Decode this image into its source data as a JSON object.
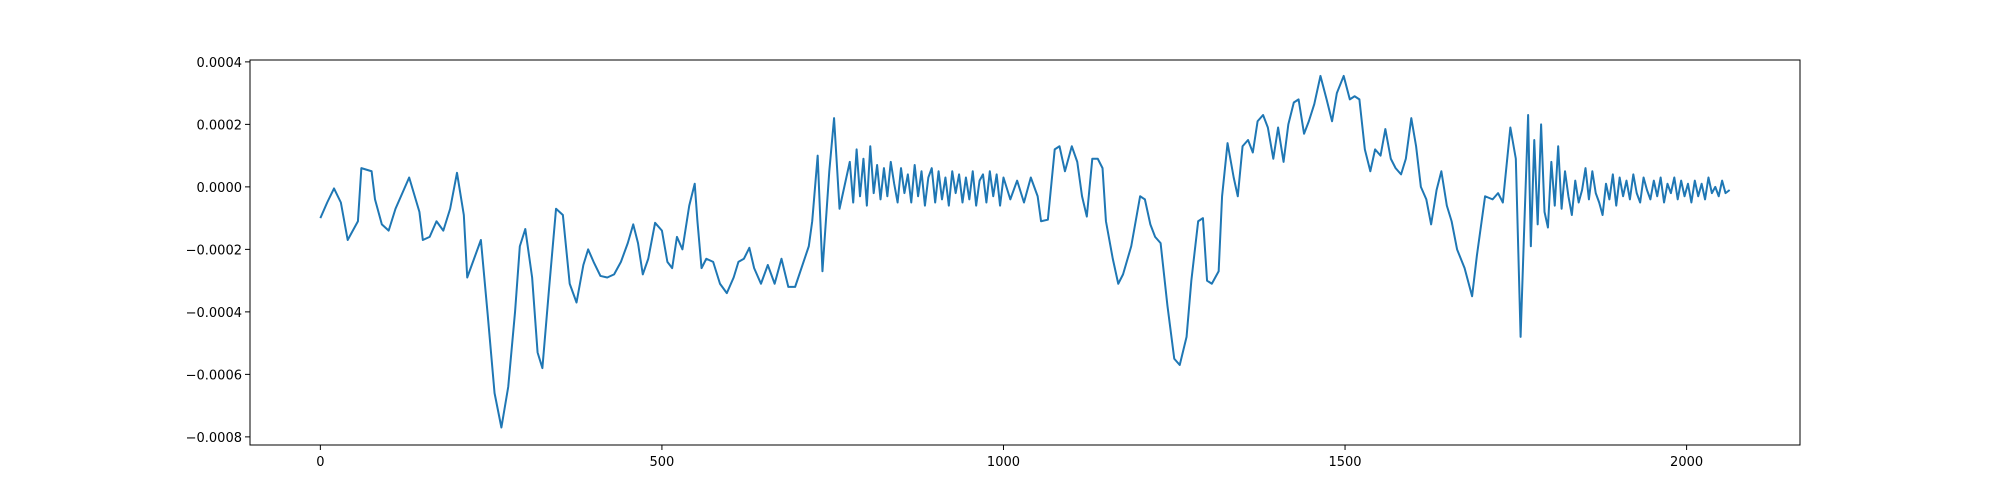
{
  "chart_data": {
    "type": "line",
    "color": "#1f77b4",
    "grid": false,
    "xlim": [
      -103,
      2166
    ],
    "ylim": [
      -0.000826,
      0.000406
    ],
    "xticks": [
      0,
      500,
      1000,
      1500,
      2000
    ],
    "yticks": [
      {
        "value": -0.0008,
        "label": "−0.0008"
      },
      {
        "value": -0.0006,
        "label": "−0.0006"
      },
      {
        "value": -0.0004,
        "label": "−0.0004"
      },
      {
        "value": -0.0002,
        "label": "−0.0002"
      },
      {
        "value": 0,
        "label": "0.0000"
      },
      {
        "value": 0.0002,
        "label": "0.0002"
      },
      {
        "value": 0.0004,
        "label": "0.0004"
      }
    ],
    "x": [
      0,
      10,
      20,
      30,
      40,
      55,
      60,
      75,
      80,
      90,
      100,
      110,
      120,
      130,
      145,
      150,
      160,
      170,
      180,
      190,
      200,
      210,
      215,
      225,
      235,
      245,
      255,
      265,
      275,
      285,
      292,
      300,
      310,
      318,
      325,
      335,
      345,
      355,
      365,
      375,
      385,
      392,
      400,
      410,
      420,
      430,
      440,
      450,
      458,
      465,
      472,
      480,
      490,
      500,
      508,
      515,
      522,
      530,
      540,
      548,
      552,
      558,
      565,
      575,
      585,
      595,
      605,
      612,
      620,
      628,
      635,
      645,
      655,
      665,
      675,
      685,
      695,
      715,
      720,
      728,
      735,
      745,
      752,
      760,
      770,
      775,
      780,
      785,
      790,
      795,
      800,
      805,
      810,
      815,
      820,
      825,
      830,
      835,
      840,
      845,
      850,
      855,
      860,
      865,
      870,
      875,
      880,
      885,
      890,
      895,
      900,
      905,
      910,
      915,
      920,
      925,
      930,
      935,
      940,
      945,
      950,
      955,
      960,
      965,
      970,
      975,
      980,
      985,
      990,
      995,
      1000,
      1010,
      1020,
      1030,
      1040,
      1050,
      1055,
      1065,
      1075,
      1082,
      1090,
      1100,
      1108,
      1115,
      1122,
      1130,
      1138,
      1145,
      1150,
      1160,
      1168,
      1175,
      1187,
      1200,
      1207,
      1215,
      1222,
      1230,
      1240,
      1250,
      1258,
      1268,
      1275,
      1285,
      1292,
      1298,
      1305,
      1315,
      1320,
      1328,
      1337,
      1343,
      1350,
      1358,
      1365,
      1372,
      1380,
      1387,
      1395,
      1402,
      1410,
      1417,
      1425,
      1432,
      1440,
      1447,
      1455,
      1464,
      1473,
      1481,
      1488,
      1498,
      1507,
      1514,
      1521,
      1529,
      1537,
      1544,
      1552,
      1559,
      1567,
      1574,
      1582,
      1589,
      1597,
      1604,
      1611,
      1619,
      1626,
      1634,
      1641,
      1649,
      1656,
      1664,
      1675,
      1686,
      1693,
      1705,
      1716,
      1724,
      1731,
      1742,
      1750,
      1757,
      1762,
      1768,
      1772,
      1777,
      1782,
      1787,
      1792,
      1797,
      1802,
      1807,
      1812,
      1817,
      1822,
      1827,
      1832,
      1837,
      1842,
      1847,
      1852,
      1857,
      1862,
      1867,
      1872,
      1877,
      1882,
      1887,
      1892,
      1897,
      1902,
      1907,
      1912,
      1917,
      1922,
      1927,
      1932,
      1937,
      1942,
      1947,
      1952,
      1957,
      1962,
      1967,
      1972,
      1977,
      1982,
      1987,
      1992,
      1997,
      2002,
      2007,
      2012,
      2017,
      2022,
      2027,
      2032,
      2037,
      2042,
      2047,
      2052,
      2057,
      2063
    ],
    "values": [
      -0.0001,
      -5e-05,
      -5e-06,
      -5e-05,
      -0.00017,
      -0.00011,
      6e-05,
      5e-05,
      -4e-05,
      -0.00012,
      -0.00014,
      -7e-05,
      -2e-05,
      3e-05,
      -8e-05,
      -0.00017,
      -0.00016,
      -0.00011,
      -0.00014,
      -7e-05,
      4.5e-05,
      -9e-05,
      -0.00029,
      -0.00023,
      -0.00017,
      -0.00041,
      -0.00066,
      -0.00077,
      -0.00064,
      -0.0004,
      -0.00019,
      -0.000135,
      -0.00029,
      -0.00053,
      -0.00058,
      -0.00032,
      -7e-05,
      -9e-05,
      -0.00031,
      -0.00037,
      -0.00025,
      -0.0002,
      -0.00024,
      -0.000285,
      -0.00029,
      -0.00028,
      -0.00024,
      -0.00018,
      -0.00012,
      -0.00018,
      -0.00028,
      -0.00023,
      -0.000115,
      -0.00014,
      -0.00024,
      -0.00026,
      -0.00016,
      -0.0002,
      -6e-05,
      1e-05,
      -0.00011,
      -0.00026,
      -0.00023,
      -0.00024,
      -0.00031,
      -0.00034,
      -0.00029,
      -0.00024,
      -0.00023,
      -0.000195,
      -0.00026,
      -0.00031,
      -0.00025,
      -0.00031,
      -0.00023,
      -0.00032,
      -0.00032,
      -0.00019,
      -0.00011,
      0.0001,
      -0.00027,
      5e-05,
      0.00022,
      -7e-05,
      3e-05,
      8e-05,
      -5e-05,
      0.00012,
      -3e-05,
      9e-05,
      -6e-05,
      0.00013,
      -2e-05,
      7e-05,
      -4e-05,
      6e-05,
      -3e-05,
      8e-05,
      1e-05,
      -5e-05,
      6e-05,
      -2e-05,
      4e-05,
      -5e-05,
      7e-05,
      -3e-05,
      5e-05,
      -6e-05,
      3e-05,
      6e-05,
      -5e-05,
      5e-05,
      -4e-05,
      3e-05,
      -6e-05,
      5e-05,
      -2e-05,
      4e-05,
      -5e-05,
      3e-05,
      -4e-05,
      5e-05,
      -6e-05,
      2e-05,
      4e-05,
      -5e-05,
      5e-05,
      -3e-05,
      4e-05,
      -6e-05,
      3e-05,
      -4e-05,
      2e-05,
      -5e-05,
      3e-05,
      -3e-05,
      -0.00011,
      -0.000105,
      0.00012,
      0.00013,
      5e-05,
      0.00013,
      8e-05,
      -3e-05,
      -9.5e-05,
      9e-05,
      9e-05,
      6e-05,
      -0.00011,
      -0.00023,
      -0.00031,
      -0.00028,
      -0.00019,
      -3e-05,
      -4e-05,
      -0.00012,
      -0.00016,
      -0.00018,
      -0.00038,
      -0.00055,
      -0.00057,
      -0.00048,
      -0.0003,
      -0.00011,
      -0.0001,
      -0.0003,
      -0.00031,
      -0.00027,
      -3e-05,
      0.00014,
      3e-05,
      -3e-05,
      0.00013,
      0.00015,
      0.00011,
      0.00021,
      0.00023,
      0.00019,
      9e-05,
      0.00019,
      8e-05,
      0.0002,
      0.00027,
      0.00028,
      0.00017,
      0.00021,
      0.000265,
      0.000355,
      0.00028,
      0.00021,
      0.0003,
      0.000355,
      0.00028,
      0.00029,
      0.00028,
      0.00012,
      5e-05,
      0.00012,
      0.0001,
      0.000185,
      9e-05,
      6e-05,
      4e-05,
      9e-05,
      0.00022,
      0.00013,
      0,
      -4e-05,
      -0.00012,
      -1e-05,
      5e-05,
      -6e-05,
      -0.00011,
      -0.0002,
      -0.00026,
      -0.00035,
      -0.00022,
      -3e-05,
      -4e-05,
      -2e-05,
      -5e-05,
      0.00019,
      9e-05,
      -0.00048,
      -0.00015,
      0.00023,
      -0.00019,
      0.00015,
      -0.00012,
      0.0002,
      -8e-05,
      -0.00013,
      8e-05,
      -6e-05,
      0.00013,
      -7e-05,
      5e-05,
      -3e-05,
      -9e-05,
      2e-05,
      -5e-05,
      -1e-05,
      6e-05,
      -4e-05,
      5e-05,
      -2e-05,
      -5e-05,
      -9e-05,
      1e-05,
      -4e-05,
      4e-05,
      -6e-05,
      3e-05,
      -3e-05,
      2e-05,
      -4e-05,
      4e-05,
      -2e-05,
      -5e-05,
      3e-05,
      -1e-05,
      -4e-05,
      2e-05,
      -3e-05,
      3e-05,
      -5e-05,
      1e-05,
      -2e-05,
      3e-05,
      -4e-05,
      2e-05,
      -3e-05,
      1e-05,
      -5e-05,
      2e-05,
      -3e-05,
      1e-05,
      -4e-05,
      3e-05,
      -2e-05,
      0,
      -3e-05,
      2e-05,
      -2e-05,
      -1e-05
    ]
  }
}
